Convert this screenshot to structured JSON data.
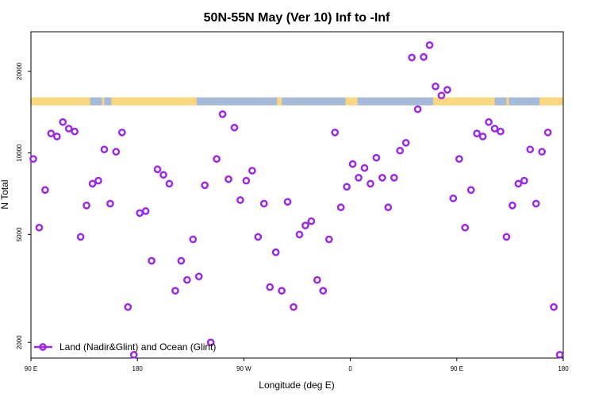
{
  "chart_data": {
    "type": "scatter",
    "title": "50N-55N May (Ver 10)   Inf to -Inf",
    "xlabel": "Longitude (deg E)",
    "ylabel": "N Total",
    "x_ticks": [
      {
        "value": 90,
        "label": "90 E"
      },
      {
        "value": 180,
        "label": "180"
      },
      {
        "value": 270,
        "label": "90 W"
      },
      {
        "value": 360,
        "label": "0"
      },
      {
        "value": 450,
        "label": "90 E"
      },
      {
        "value": 540,
        "label": "180"
      }
    ],
    "y_ticks": [
      {
        "value": 2000,
        "label": "2000"
      },
      {
        "value": 5000,
        "label": "5000"
      },
      {
        "value": 10000,
        "label": "10000"
      },
      {
        "value": 20000,
        "label": "20000"
      }
    ],
    "xlim": [
      90,
      540
    ],
    "ylim": [
      1750,
      28000
    ],
    "y_scale": "log",
    "surface_strip": {
      "land_color": "#f9d77e",
      "ocean_color": "#a6bbd9",
      "level": 15500,
      "ocean_ranges": [
        [
          140,
          150
        ],
        [
          152,
          158
        ],
        [
          230,
          298
        ],
        [
          302,
          356
        ],
        [
          366,
          430
        ],
        [
          482,
          492
        ],
        [
          494,
          520
        ]
      ]
    },
    "series": [
      {
        "name": "Land (Nadir&Glint) and Ocean (Glint)",
        "color": "#9b2be2",
        "points": [
          [
            92,
            9500
          ],
          [
            97,
            5300
          ],
          [
            102,
            7300
          ],
          [
            107,
            11800
          ],
          [
            112,
            11500
          ],
          [
            117,
            13000
          ],
          [
            122,
            12300
          ],
          [
            127,
            12000
          ],
          [
            132,
            4900
          ],
          [
            137,
            6400
          ],
          [
            142,
            7700
          ],
          [
            147,
            7900
          ],
          [
            152,
            10300
          ],
          [
            157,
            6500
          ],
          [
            162,
            10100
          ],
          [
            167,
            11900
          ],
          [
            172,
            2700
          ],
          [
            177,
            1800
          ],
          [
            182,
            6000
          ],
          [
            187,
            6100
          ],
          [
            192,
            4000
          ],
          [
            197,
            8700
          ],
          [
            202,
            8300
          ],
          [
            207,
            7700
          ],
          [
            212,
            3100
          ],
          [
            217,
            4000
          ],
          [
            222,
            3400
          ],
          [
            227,
            4800
          ],
          [
            232,
            3500
          ],
          [
            237,
            7600
          ],
          [
            242,
            2000
          ],
          [
            247,
            9500
          ],
          [
            252,
            13900
          ],
          [
            257,
            8000
          ],
          [
            262,
            12400
          ],
          [
            267,
            6700
          ],
          [
            272,
            7900
          ],
          [
            277,
            8600
          ],
          [
            282,
            4900
          ],
          [
            287,
            6500
          ],
          [
            292,
            3200
          ],
          [
            297,
            4300
          ],
          [
            302,
            3100
          ],
          [
            307,
            6600
          ],
          [
            312,
            2700
          ],
          [
            317,
            5000
          ],
          [
            322,
            5400
          ],
          [
            327,
            5600
          ],
          [
            332,
            3400
          ],
          [
            337,
            3100
          ],
          [
            342,
            4800
          ],
          [
            347,
            11900
          ],
          [
            352,
            6300
          ],
          [
            357,
            7500
          ],
          [
            362,
            9100
          ],
          [
            367,
            8100
          ],
          [
            372,
            8800
          ],
          [
            377,
            7700
          ],
          [
            382,
            9600
          ],
          [
            387,
            8100
          ],
          [
            392,
            6300
          ],
          [
            397,
            8100
          ],
          [
            402,
            10200
          ],
          [
            407,
            10900
          ],
          [
            412,
            22500
          ],
          [
            417,
            14500
          ],
          [
            422,
            22600
          ],
          [
            427,
            25000
          ],
          [
            432,
            17600
          ],
          [
            437,
            16300
          ],
          [
            442,
            17100
          ],
          [
            447,
            6800
          ],
          [
            452,
            9500
          ],
          [
            457,
            5300
          ],
          [
            462,
            7300
          ],
          [
            467,
            11800
          ],
          [
            472,
            11500
          ],
          [
            477,
            13000
          ],
          [
            482,
            12300
          ],
          [
            487,
            12000
          ],
          [
            492,
            4900
          ],
          [
            497,
            6400
          ],
          [
            502,
            7700
          ],
          [
            507,
            7900
          ],
          [
            512,
            10300
          ],
          [
            517,
            6500
          ],
          [
            522,
            10100
          ],
          [
            527,
            11900
          ],
          [
            532,
            2700
          ],
          [
            537,
            1800
          ]
        ]
      }
    ],
    "legend": {
      "position": "bottom-left",
      "entry": "Land (Nadir&Glint) and Ocean (Glint)"
    }
  }
}
